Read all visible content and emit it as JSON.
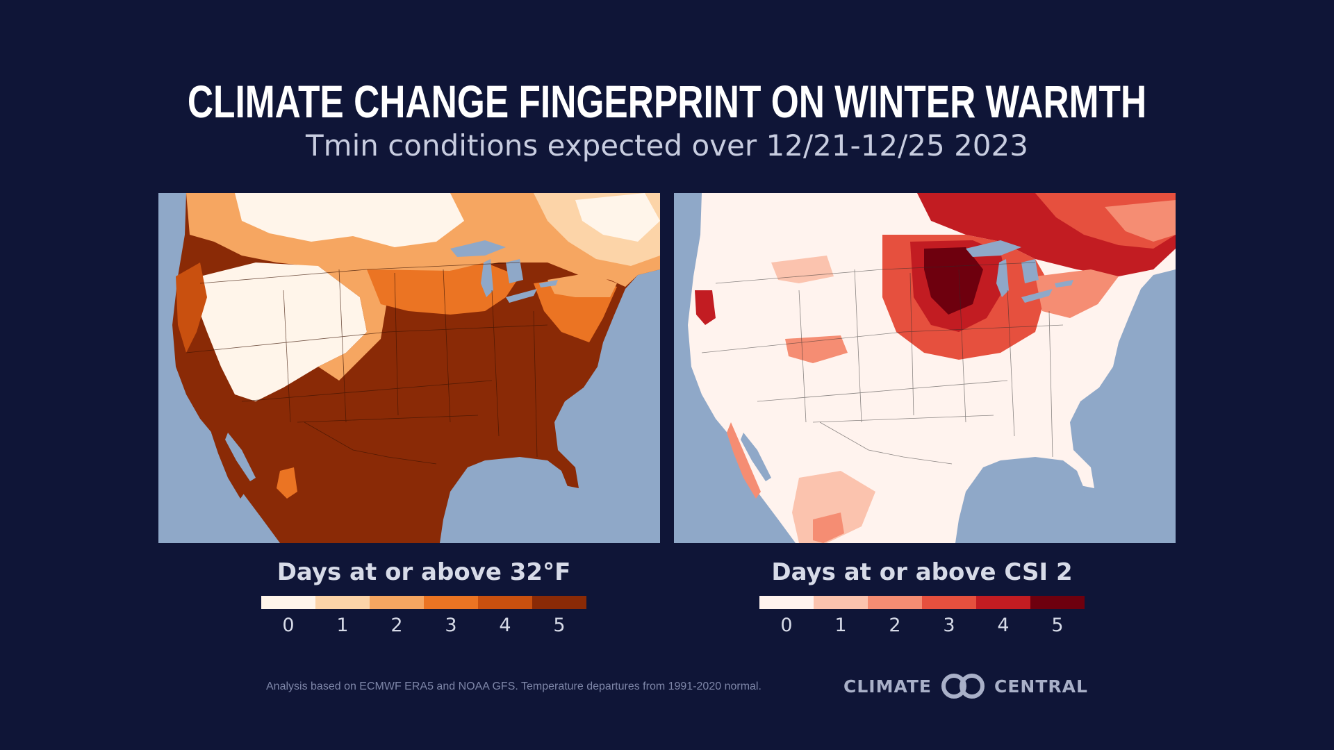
{
  "title": "Climate Change Fingerprint on Winter Warmth",
  "subtitle": "Tmin conditions expected over 12/21-12/25 2023",
  "colors": {
    "background": "#0f1537",
    "ocean": "#8fa8c8",
    "text_light": "#d7dbe8"
  },
  "maps": [
    {
      "legend_title": "Days at or above 32°F",
      "ticks": [
        "0",
        "1",
        "2",
        "3",
        "4",
        "5"
      ],
      "scale_colors": [
        "#fff5ea",
        "#fcd4a8",
        "#f6a661",
        "#eb7423",
        "#c9500f",
        "#8a2a06"
      ]
    },
    {
      "legend_title": "Days at or above CSI 2",
      "ticks": [
        "0",
        "1",
        "2",
        "3",
        "4",
        "5"
      ],
      "scale_colors": [
        "#fff3ee",
        "#fbc3ae",
        "#f58d73",
        "#e6503e",
        "#c21c22",
        "#6e000e"
      ]
    }
  ],
  "footnote": "Analysis based on ECMWF ERA5 and NOAA GFS. Temperature departures from 1991-2020 normal.",
  "logo": {
    "left_text": "CLIMATE",
    "right_text": "CENTRAL"
  }
}
